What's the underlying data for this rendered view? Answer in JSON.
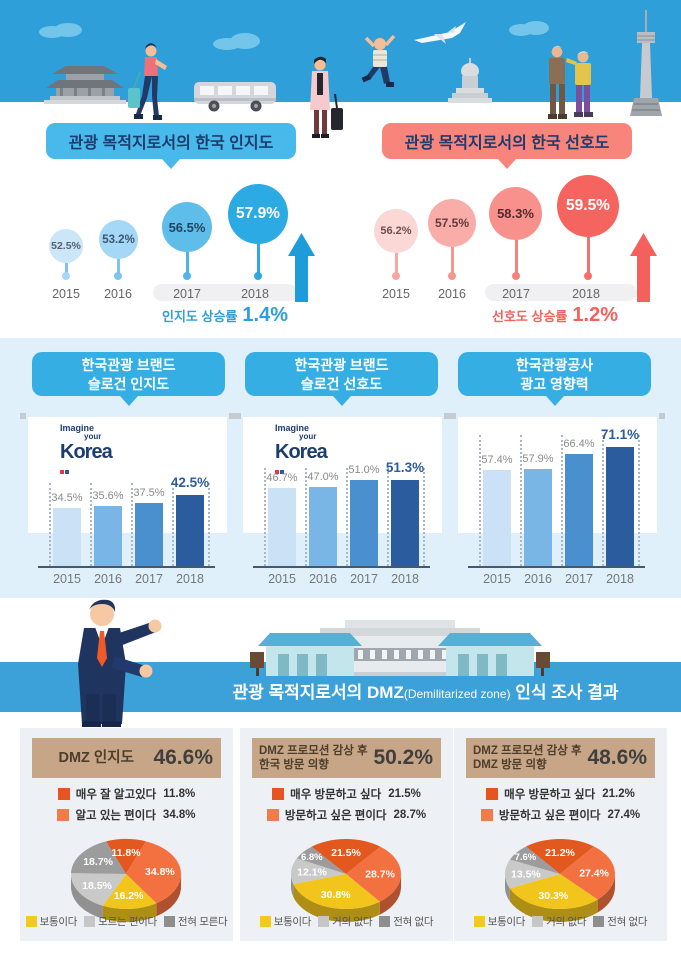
{
  "top": {
    "awareness": {
      "title": "관광 목적지로서의 한국 인지도",
      "growth_label": "인지도 상승률",
      "growth_value": "1.4%"
    },
    "preference": {
      "title": "관광 목적지로서의 한국 선호도",
      "growth_label": "선호도 상승률",
      "growth_value": "1.2%"
    }
  },
  "brand": {
    "headers": [
      {
        "line1": "한국관광 브랜드",
        "line2": "슬로건 인지도"
      },
      {
        "line1": "한국관광 브랜드",
        "line2": "슬로건 선호도"
      },
      {
        "line1": "한국관광공사",
        "line2": "광고 영향력"
      }
    ],
    "logo": {
      "word1": "Imagine",
      "word2": "your",
      "word3": "Korea"
    }
  },
  "dmz": {
    "banner_main": "관광 목적지로서의 DMZ",
    "banner_paren": "(Demilitarized zone)",
    "banner_suffix": " 인식 조사 결과",
    "panels": [
      {
        "title_lines": [
          "DMZ 인지도"
        ],
        "percent": "46.6%",
        "top_legend": [
          {
            "label": "매우 잘 알고있다",
            "value": "11.8%"
          },
          {
            "label": "알고 있는 편이다",
            "value": "34.8%"
          }
        ],
        "bottom_legend": [
          "보통이다",
          "모르는 편이다",
          "전혀 모른다"
        ]
      },
      {
        "title_lines": [
          "DMZ 프로모션 감상 후",
          "한국 방문 의향"
        ],
        "percent": "50.2%",
        "top_legend": [
          {
            "label": "매우 방문하고 싶다",
            "value": "21.5%"
          },
          {
            "label": "방문하고 싶은 편이다",
            "value": "28.7%"
          }
        ],
        "bottom_legend": [
          "보통이다",
          "거의 없다",
          "전혀 없다"
        ]
      },
      {
        "title_lines": [
          "DMZ 프로모션 감상 후",
          "DMZ 방문 의향"
        ],
        "percent": "48.6%",
        "top_legend": [
          {
            "label": "매우 방문하고 싶다",
            "value": "21.2%"
          },
          {
            "label": "방문하고 싶은 편이다",
            "value": "27.4%"
          }
        ],
        "bottom_legend": [
          "보통이다",
          "거의 없다",
          "전혀 없다"
        ]
      }
    ]
  },
  "chart_data": [
    {
      "type": "scatter",
      "subtype": "bubble-timeline",
      "title": "관광 목적지로서의 한국 인지도",
      "categories": [
        "2015",
        "2016",
        "2017",
        "2018"
      ],
      "values": [
        52.5,
        53.2,
        56.5,
        57.9
      ],
      "value_labels": [
        "52.5%",
        "53.2%",
        "56.5%",
        "57.9%"
      ],
      "annotation": "인지도 상승률 1.4%",
      "accent_color": "#2E9FD9"
    },
    {
      "type": "scatter",
      "subtype": "bubble-timeline",
      "title": "관광 목적지로서의 한국 선호도",
      "categories": [
        "2015",
        "2016",
        "2017",
        "2018"
      ],
      "values": [
        56.2,
        57.5,
        58.3,
        59.5
      ],
      "value_labels": [
        "56.2%",
        "57.5%",
        "58.3%",
        "59.5%"
      ],
      "annotation": "선호도 상승률 1.2%",
      "accent_color": "#F4605C"
    },
    {
      "type": "bar",
      "title": "한국관광 브랜드 슬로건 인지도",
      "categories": [
        "2015",
        "2016",
        "2017",
        "2018"
      ],
      "values": [
        34.5,
        35.6,
        37.5,
        42.5
      ],
      "value_labels": [
        "34.5%",
        "35.6%",
        "37.5%",
        "42.5%"
      ],
      "bar_colors": [
        "#CBE2F6",
        "#79B6E6",
        "#4A90CE",
        "#2B5C9E"
      ],
      "grid": false
    },
    {
      "type": "bar",
      "title": "한국관광 브랜드 슬로건 선호도",
      "categories": [
        "2015",
        "2016",
        "2017",
        "2018"
      ],
      "values": [
        46.7,
        47.0,
        51.0,
        51.3
      ],
      "value_labels": [
        "46.7%",
        "47.0%",
        "51.0%",
        "51.3%"
      ],
      "bar_colors": [
        "#CBE2F6",
        "#79B6E6",
        "#4A90CE",
        "#2B5C9E"
      ],
      "grid": false
    },
    {
      "type": "bar",
      "title": "한국관광공사 광고 영향력",
      "categories": [
        "2015",
        "2016",
        "2017",
        "2018"
      ],
      "values": [
        57.4,
        57.9,
        66.4,
        71.1
      ],
      "value_labels": [
        "57.4%",
        "57.9%",
        "66.4%",
        "71.1%"
      ],
      "bar_colors": [
        "#CBE2F6",
        "#79B6E6",
        "#4A90CE",
        "#2B5C9E"
      ],
      "grid": false
    },
    {
      "type": "pie",
      "title": "DMZ 인지도",
      "total": "46.6%",
      "labels": [
        "매우 잘 알고있다",
        "알고 있는 편이다",
        "보통이다",
        "모르는 편이다",
        "전혀 모른다"
      ],
      "values": [
        11.8,
        34.8,
        16.2,
        18.5,
        18.7
      ],
      "value_labels": [
        "11.8%",
        "34.8%",
        "16.2%",
        "18.5%",
        "18.7%"
      ],
      "colors": [
        "#E2581E",
        "#F37140",
        "#F2C51D",
        "#C9C9C9",
        "#9C9C9C"
      ]
    },
    {
      "type": "pie",
      "title": "DMZ 프로모션 감상 후 한국 방문 의향",
      "total": "50.2%",
      "labels": [
        "매우 방문하고 싶다",
        "방문하고 싶은 편이다",
        "보통이다",
        "거의 없다",
        "전혀 없다"
      ],
      "values": [
        21.5,
        28.7,
        30.8,
        12.1,
        6.8
      ],
      "value_labels": [
        "21.5%",
        "28.7%",
        "30.8%",
        "12.1%",
        "6.8%"
      ],
      "colors": [
        "#E2581E",
        "#F37140",
        "#F2C51D",
        "#C9C9C9",
        "#9C9C9C"
      ]
    },
    {
      "type": "pie",
      "title": "DMZ 프로모션 감상 후 DMZ 방문 의향",
      "total": "48.6%",
      "labels": [
        "매우 방문하고 싶다",
        "방문하고 싶은 편이다",
        "보통이다",
        "거의 없다",
        "전혀 없다"
      ],
      "values": [
        21.2,
        27.4,
        30.3,
        13.5,
        7.6
      ],
      "value_labels": [
        "21.2%",
        "27.4%",
        "30.3%",
        "13.5%",
        "7.6%"
      ],
      "colors": [
        "#E2581E",
        "#F37140",
        "#F2C51D",
        "#C9C9C9",
        "#9C9C9C"
      ]
    }
  ]
}
